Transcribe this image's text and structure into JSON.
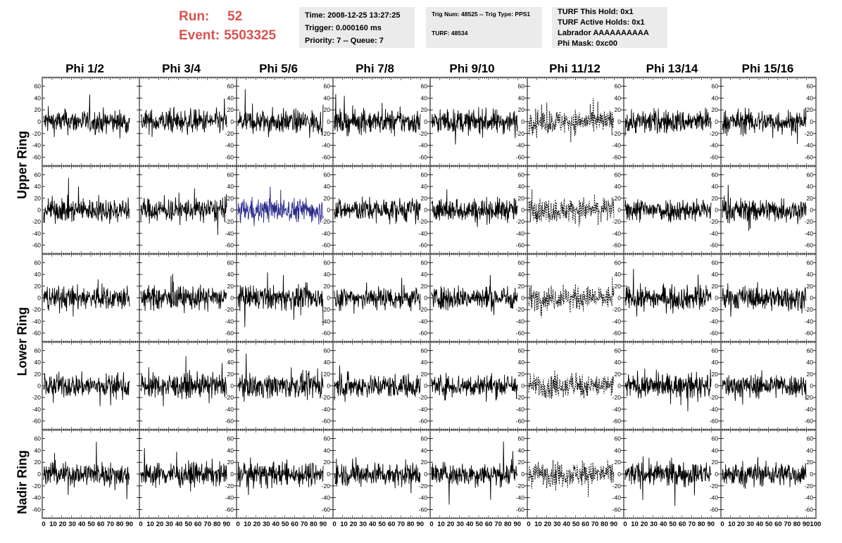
{
  "run": {
    "run_label": "Run:",
    "run_value": "52",
    "event_label": "Event:",
    "event_value": "5503325",
    "color": "#d9534f"
  },
  "info_time": {
    "time": "Time: 2008-12-25 13:27:25",
    "trigger": "Trigger: 0.000160 ms",
    "priority": "Priority: 7 -- Queue: 7"
  },
  "info_trig": {
    "trig": "Trig Num: 48525 -- Trig Type: PPS1",
    "turf": "TURF: 48534"
  },
  "info_turf": {
    "hold": "TURF This Hold: 0x1",
    "active": "TURF Active Holds: 0x1",
    "labrador": "Labrador AAAAAAAAAA",
    "phimask": "Phi Mask: 0xc00"
  },
  "phi_headers": [
    "Phi 1/2",
    "Phi 3/4",
    "Phi 5/6",
    "Phi 7/8",
    "Phi 9/10",
    "Phi 11/12",
    "Phi 13/14",
    "Phi 15/16"
  ],
  "ring_labels": [
    "Upper Ring",
    "Lower Ring",
    "Nadir Ring"
  ],
  "chart_data": {
    "type": "line",
    "description": "Grid of 5 rows x 8 columns of waveform panels (voltage vs sample)",
    "ylim": [
      -75,
      75
    ],
    "y_ticks": [
      -60,
      -40,
      -20,
      0,
      20,
      40,
      60
    ],
    "xlim": [
      0,
      100
    ],
    "x_tick_labels": [
      "0",
      "10",
      "20",
      "30",
      "40",
      "50",
      "60",
      "70",
      "80",
      "90",
      "100"
    ],
    "grid": false,
    "highlighted_panel": {
      "row": 2,
      "col": 3,
      "color": "#2b2b8c"
    },
    "dashed_column": 6,
    "line_color": "#000000"
  }
}
